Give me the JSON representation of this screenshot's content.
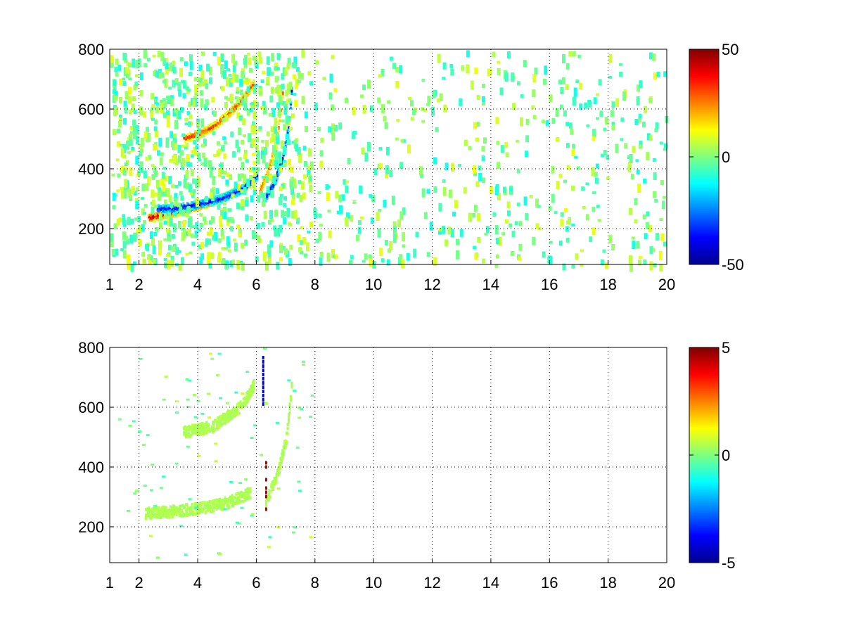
{
  "chart_data": [
    {
      "type": "heatmap",
      "title": "",
      "xlabel": "",
      "ylabel": "",
      "xlim": [
        1,
        20
      ],
      "ylim": [
        80,
        800
      ],
      "x_ticks": [
        1,
        2,
        4,
        6,
        8,
        10,
        12,
        14,
        16,
        18,
        20
      ],
      "y_ticks": [
        200,
        400,
        600,
        800
      ],
      "grid": true,
      "colorbar": {
        "colormap": "jet",
        "min": -50,
        "max": 50,
        "ticks": [
          -50,
          0,
          50
        ],
        "position": "right"
      },
      "features": [
        {
          "kind": "arc",
          "x": [
            2.3,
            2.8,
            3.5,
            4.2,
            5.0,
            5.8
          ],
          "y": [
            240,
            250,
            265,
            285,
            315,
            355
          ],
          "value": 45
        },
        {
          "kind": "arc",
          "x": [
            2.6,
            3.2,
            4.0,
            4.8,
            5.5,
            6.0
          ],
          "y": [
            270,
            272,
            285,
            305,
            335,
            380
          ],
          "value": -40
        },
        {
          "kind": "arc",
          "x": [
            3.5,
            4.0,
            4.5,
            5.0,
            5.5,
            5.9
          ],
          "y": [
            505,
            520,
            545,
            585,
            635,
            690
          ],
          "value": 35
        },
        {
          "kind": "arc",
          "x": [
            6.3,
            6.6,
            6.9,
            7.1,
            7.2
          ],
          "y": [
            310,
            360,
            450,
            560,
            700
          ],
          "value": -45
        },
        {
          "kind": "arc",
          "x": [
            6.1,
            6.4,
            6.7,
            6.9
          ],
          "y": [
            330,
            400,
            520,
            680
          ],
          "value": 30
        }
      ]
    },
    {
      "type": "heatmap",
      "title": "",
      "xlabel": "",
      "ylabel": "",
      "xlim": [
        1,
        20
      ],
      "ylim": [
        80,
        800
      ],
      "x_ticks": [
        1,
        2,
        4,
        6,
        8,
        10,
        12,
        14,
        16,
        18,
        20
      ],
      "y_ticks": [
        200,
        400,
        600,
        800
      ],
      "grid": true,
      "colorbar": {
        "colormap": "jet",
        "min": -5,
        "max": 5,
        "ticks": [
          -5,
          0,
          5
        ],
        "position": "right"
      },
      "features": [
        {
          "kind": "band",
          "x": [
            2.2,
            3.0,
            4.0,
            5.0,
            5.8
          ],
          "y": [
            250,
            255,
            265,
            285,
            320
          ],
          "value": 0.5
        },
        {
          "kind": "band",
          "x": [
            3.5,
            4.5,
            5.5,
            5.9
          ],
          "y": [
            520,
            540,
            610,
            680
          ],
          "value": 0.5
        },
        {
          "kind": "band",
          "x": [
            6.3,
            6.7,
            7.0,
            7.2
          ],
          "y": [
            290,
            380,
            500,
            700
          ],
          "value": 0.5
        },
        {
          "kind": "streak",
          "x": [
            6.2
          ],
          "y": [
            600,
            800
          ],
          "value": -4
        },
        {
          "kind": "streak",
          "x": [
            6.3
          ],
          "y": [
            250,
            420
          ],
          "value": 4.5
        }
      ]
    }
  ]
}
